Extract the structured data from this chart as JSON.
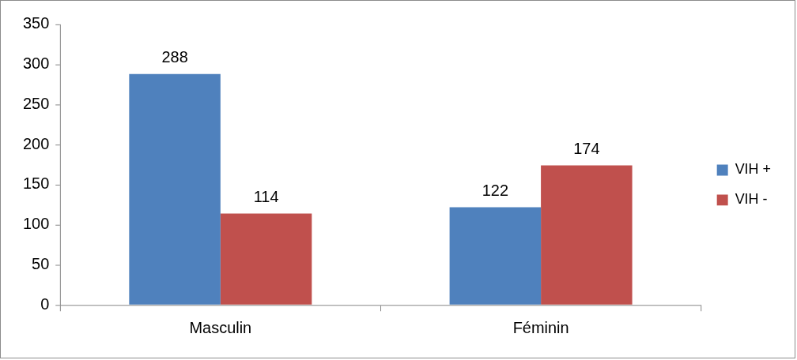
{
  "chart_data": {
    "type": "bar",
    "categories": [
      "Masculin",
      "Féminin"
    ],
    "series": [
      {
        "name": "VIH +",
        "color": "#4f81bd",
        "values": [
          288,
          122
        ]
      },
      {
        "name": "VIH -",
        "color": "#c0504d",
        "values": [
          114,
          174
        ]
      }
    ],
    "ylim": [
      0,
      350
    ],
    "yticks": [
      0,
      50,
      100,
      150,
      200,
      250,
      300,
      350
    ],
    "grid": false,
    "legend": "right",
    "data_labels": true
  }
}
